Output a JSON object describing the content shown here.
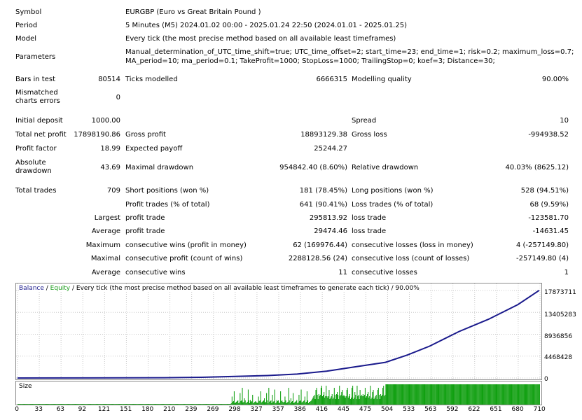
{
  "report": {
    "symbol_label": "Symbol",
    "symbol_value": "EURGBP (Euro vs Great Britain Pound )",
    "period_label": "Period",
    "period_value": "5 Minutes (M5) 2024.01.02 00:00 - 2025.01.24 22:50 (2024.01.01 - 2025.01.25)",
    "model_label": "Model",
    "model_value": "Every tick (the most precise method based on all available least timeframes)",
    "params_label": "Parameters",
    "params_line1": "Manual_determination_of_UTC_time_shift=true; UTC_time_offset=2; start_time=23; end_time=1; risk=0.2; maximum_loss=0.7;",
    "params_line2": "MA_period=10; ma_period=0.1; TakeProfit=1000; StopLoss=1000; TrailingStop=0; koef=3; Distance=30;",
    "bars_label": "Bars in test",
    "bars_value": "80514",
    "ticks_label": "Ticks modelled",
    "ticks_value": "6666315",
    "quality_label": "Modelling quality",
    "quality_value": "90.00%",
    "mismatch_label1": "Mismatched",
    "mismatch_label2": "charts errors",
    "mismatch_value": "0",
    "deposit_label": "Initial deposit",
    "deposit_value": "1000.00",
    "spread_label": "Spread",
    "spread_value": "10",
    "netprofit_label": "Total net profit",
    "netprofit_value": "17898190.86",
    "grossprofit_label": "Gross profit",
    "grossprofit_value": "18893129.38",
    "grossloss_label": "Gross loss",
    "grossloss_value": "-994938.52",
    "pf_label": "Profit factor",
    "pf_value": "18.99",
    "payoff_label": "Expected payoff",
    "payoff_value": "25244.27",
    "absdd_label1": "Absolute",
    "absdd_label2": "drawdown",
    "absdd_value": "43.69",
    "maxdd_label": "Maximal drawdown",
    "maxdd_value": "954842.40 (8.60%)",
    "reldd_label": "Relative drawdown",
    "reldd_value": "40.03% (8625.12)",
    "trades_label": "Total trades",
    "trades_value": "709",
    "short_label": "Short positions (won %)",
    "short_value": "181 (78.45%)",
    "long_label": "Long positions (won %)",
    "long_value": "528 (94.51%)",
    "pt_label": "Profit trades (% of total)",
    "pt_value": "641 (90.41%)",
    "lt_label": "Loss trades (% of total)",
    "lt_value": "68 (9.59%)",
    "largest_label": "Largest",
    "largest_profit_label": "profit trade",
    "largest_profit_value": "295813.92",
    "largest_loss_label": "loss trade",
    "largest_loss_value": "-123581.70",
    "average_label": "Average",
    "average_profit_label": "profit trade",
    "average_profit_value": "29474.46",
    "average_loss_label": "loss trade",
    "average_loss_value": "-14631.45",
    "maximum_label": "Maximum",
    "max_wins_label": "consecutive wins (profit in money)",
    "max_wins_value": "62 (169976.44)",
    "max_losses_label": "consecutive losses (loss in money)",
    "max_losses_value": "4 (-257149.80)",
    "maximal_label": "Maximal",
    "maximal_profit_label": "consecutive profit (count of wins)",
    "maximal_profit_value": "2288128.56 (24)",
    "maximal_loss_label": "consecutive loss (count of losses)",
    "maximal_loss_value": "-257149.80 (4)",
    "avg2_label": "Average",
    "avg_wins_label": "consecutive wins",
    "avg_wins_value": "11",
    "avg_losses_label": "consecutive losses",
    "avg_losses_value": "1"
  },
  "chart": {
    "legend_balance": "Balance",
    "legend_sep1": " / ",
    "legend_equity": "Equity",
    "legend_rest": " / Every tick (the most precise method based on all available least timeframes to generate each tick) / 90.00%",
    "size_label": "Size",
    "colors": {
      "balance": "#1a1a8c",
      "equity": "#1e9e1e",
      "grid": "#c8c8c8",
      "size": "#11a011"
    }
  },
  "chart_data": {
    "type": "line",
    "series": [
      {
        "name": "Balance",
        "x": [
          0,
          100,
          200,
          250,
          300,
          340,
          380,
          420,
          460,
          500,
          530,
          560,
          600,
          640,
          680,
          709
        ],
        "y": [
          1000,
          20000,
          60000,
          150000,
          350000,
          500000,
          800000,
          1400000,
          2300000,
          3200000,
          4700000,
          6500000,
          9500000,
          12000000,
          15000000,
          17898190
        ]
      }
    ],
    "y_ticks": [
      "17873711",
      "13405283",
      "8936856",
      "4468428",
      "0"
    ],
    "x_ticks": [
      "0",
      "33",
      "63",
      "92",
      "121",
      "151",
      "180",
      "210",
      "239",
      "269",
      "298",
      "327",
      "357",
      "386",
      "416",
      "445",
      "475",
      "504",
      "533",
      "563",
      "592",
      "622",
      "651",
      "680",
      "710"
    ],
    "ylim": [
      0,
      17873711
    ],
    "xlim": [
      0,
      710
    ],
    "grid": true,
    "size_series": [
      {
        "name": "Size",
        "x_start": 0,
        "x_end": 709
      }
    ]
  }
}
